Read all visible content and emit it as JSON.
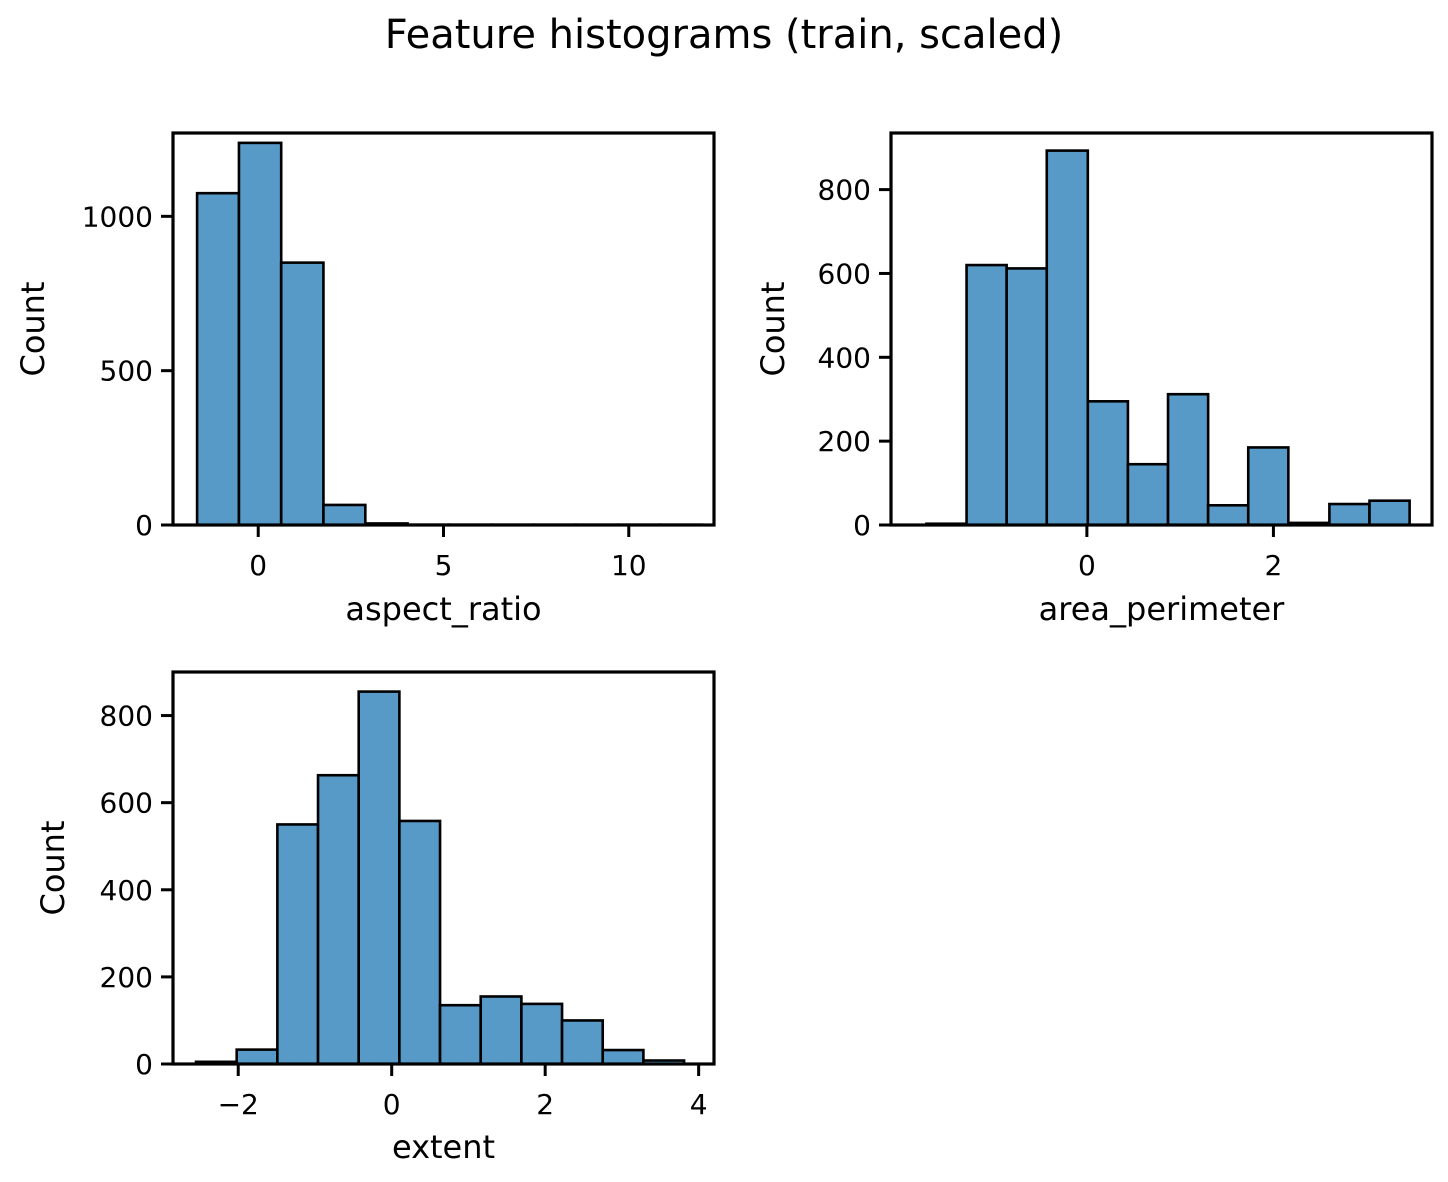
{
  "figure": {
    "title": "Feature histograms (train, scaled)",
    "bar_color": "#5799c7",
    "edge_color": "#000000"
  },
  "chart_data": [
    {
      "type": "bar",
      "title": "",
      "xlabel": "aspect_ratio",
      "ylabel": "Count",
      "xlim": [
        -2.3,
        12.3
      ],
      "ylim": [
        0,
        1270
      ],
      "xticks": [
        0,
        5,
        10
      ],
      "xtick_labels": [
        "0",
        "5",
        "10"
      ],
      "yticks": [
        0,
        500,
        1000
      ],
      "ytick_labels": [
        "0",
        "500",
        "1000"
      ],
      "bins": [
        {
          "x0": -1.65,
          "x1": -0.52,
          "count": 1075
        },
        {
          "x0": -0.52,
          "x1": 0.62,
          "count": 1238
        },
        {
          "x0": 0.62,
          "x1": 1.76,
          "count": 850
        },
        {
          "x0": 1.76,
          "x1": 2.89,
          "count": 65
        },
        {
          "x0": 2.89,
          "x1": 4.03,
          "count": 5
        },
        {
          "x0": 4.03,
          "x1": 5.16,
          "count": 1
        },
        {
          "x0": 5.16,
          "x1": 6.3,
          "count": 1
        },
        {
          "x0": 6.3,
          "x1": 7.44,
          "count": 1
        },
        {
          "x0": 7.44,
          "x1": 8.57,
          "count": 1
        },
        {
          "x0": 8.57,
          "x1": 9.71,
          "count": 1
        },
        {
          "x0": 9.71,
          "x1": 10.84,
          "count": 1
        },
        {
          "x0": 10.84,
          "x1": 11.98,
          "count": 1
        }
      ]
    },
    {
      "type": "bar",
      "title": "",
      "xlabel": "area_perimeter",
      "ylabel": "Count",
      "xlim": [
        -2.1,
        3.7
      ],
      "ylim": [
        0,
        935
      ],
      "xticks": [
        0,
        2
      ],
      "xtick_labels": [
        "0",
        "2"
      ],
      "yticks": [
        0,
        200,
        400,
        600,
        800
      ],
      "ytick_labels": [
        "0",
        "200",
        "400",
        "600",
        "800"
      ],
      "bins": [
        {
          "x0": -1.72,
          "x1": -1.29,
          "count": 3
        },
        {
          "x0": -1.29,
          "x1": -0.86,
          "count": 620
        },
        {
          "x0": -0.86,
          "x1": -0.43,
          "count": 612
        },
        {
          "x0": -0.43,
          "x1": 0.01,
          "count": 893
        },
        {
          "x0": 0.01,
          "x1": 0.44,
          "count": 295
        },
        {
          "x0": 0.44,
          "x1": 0.87,
          "count": 145
        },
        {
          "x0": 0.87,
          "x1": 1.3,
          "count": 312
        },
        {
          "x0": 1.3,
          "x1": 1.73,
          "count": 47
        },
        {
          "x0": 1.73,
          "x1": 2.16,
          "count": 185
        },
        {
          "x0": 2.16,
          "x1": 2.6,
          "count": 5
        },
        {
          "x0": 2.6,
          "x1": 3.03,
          "count": 50
        },
        {
          "x0": 3.03,
          "x1": 3.46,
          "count": 58
        }
      ]
    },
    {
      "type": "bar",
      "title": "",
      "xlabel": "extent",
      "ylabel": "Count",
      "xlim": [
        -2.85,
        4.2
      ],
      "ylim": [
        0,
        900
      ],
      "xticks": [
        -2,
        0,
        2,
        4
      ],
      "xtick_labels": [
        "−2",
        "0",
        "2",
        "4"
      ],
      "yticks": [
        0,
        200,
        400,
        600,
        800
      ],
      "ytick_labels": [
        "0",
        "200",
        "400",
        "600",
        "800"
      ],
      "bins": [
        {
          "x0": -2.55,
          "x1": -2.02,
          "count": 5
        },
        {
          "x0": -2.02,
          "x1": -1.49,
          "count": 33
        },
        {
          "x0": -1.49,
          "x1": -0.96,
          "count": 550
        },
        {
          "x0": -0.96,
          "x1": -0.43,
          "count": 663
        },
        {
          "x0": -0.43,
          "x1": 0.1,
          "count": 855
        },
        {
          "x0": 0.1,
          "x1": 0.63,
          "count": 558
        },
        {
          "x0": 0.63,
          "x1": 1.16,
          "count": 135
        },
        {
          "x0": 1.16,
          "x1": 1.69,
          "count": 155
        },
        {
          "x0": 1.69,
          "x1": 2.22,
          "count": 138
        },
        {
          "x0": 2.22,
          "x1": 2.75,
          "count": 100
        },
        {
          "x0": 2.75,
          "x1": 3.28,
          "count": 32
        },
        {
          "x0": 3.28,
          "x1": 3.81,
          "count": 8
        }
      ]
    }
  ]
}
